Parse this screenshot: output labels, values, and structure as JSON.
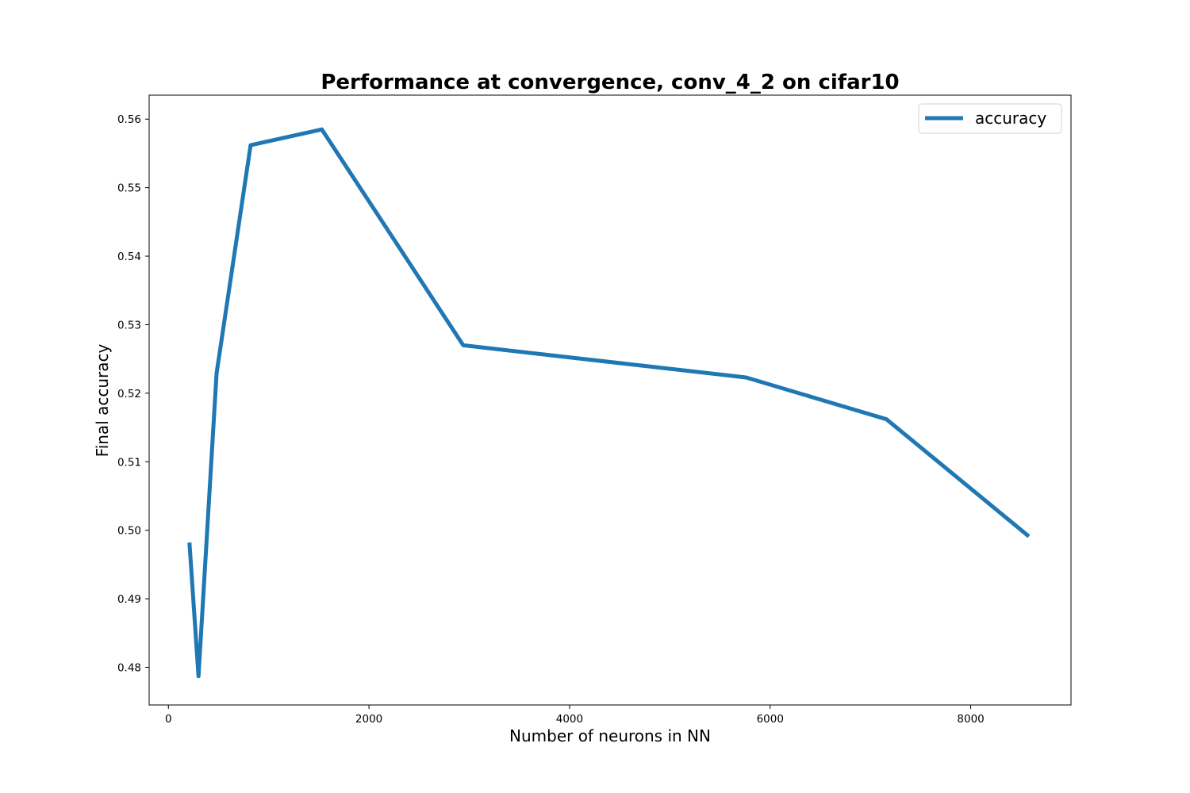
{
  "chart_data": {
    "type": "line",
    "title": "Performance at convergence, conv_4_2 on cifar10",
    "xlabel": "Number of neurons in NN",
    "ylabel": "Final accuracy",
    "xlim": [
      -192,
      9000
    ],
    "ylim": [
      0.4745,
      0.5635
    ],
    "xticks": [
      0,
      2000,
      4000,
      6000,
      8000
    ],
    "xtick_labels": [
      "0",
      "2000",
      "4000",
      "6000",
      "8000"
    ],
    "yticks": [
      0.48,
      0.49,
      0.5,
      0.51,
      0.52,
      0.53,
      0.54,
      0.55,
      0.56
    ],
    "ytick_labels": [
      "0.48",
      "0.49",
      "0.50",
      "0.51",
      "0.52",
      "0.53",
      "0.54",
      "0.55",
      "0.56"
    ],
    "grid": false,
    "legend_position": "top-right",
    "series": [
      {
        "name": "accuracy",
        "color": "#1f77b4",
        "x": [
          210,
          300,
          480,
          820,
          1530,
          2940,
          5760,
          7160,
          8580
        ],
        "y": [
          0.4982,
          0.4787,
          0.5229,
          0.5562,
          0.5585,
          0.527,
          0.5223,
          0.5162,
          0.4991
        ]
      }
    ]
  }
}
